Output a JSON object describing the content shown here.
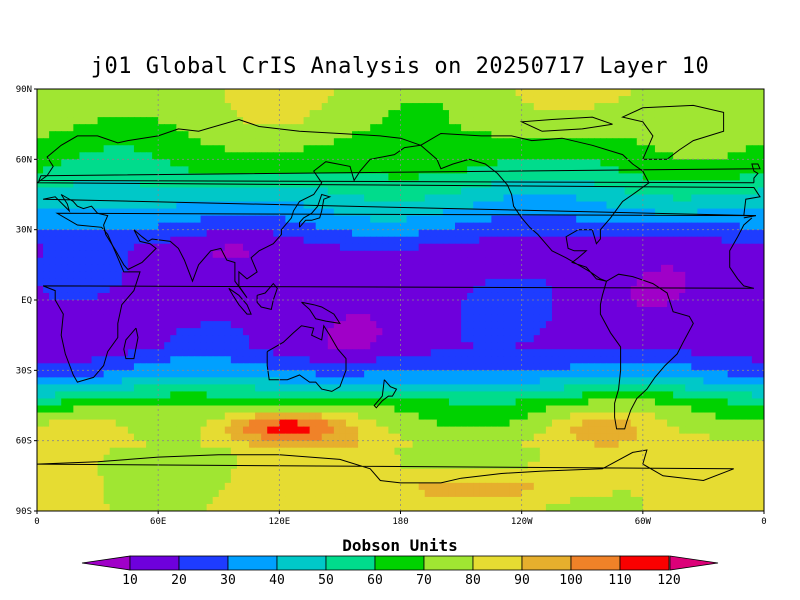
{
  "title": "j01 Global CrIS Analysis on 20250717 Layer 10",
  "colorbar": {
    "title": "Dobson Units",
    "labels": [
      "10",
      "20",
      "30",
      "40",
      "50",
      "60",
      "70",
      "80",
      "90",
      "100",
      "110",
      "120"
    ],
    "colors": [
      "#a000c8",
      "#6e00dc",
      "#1e3cff",
      "#00a0ff",
      "#00c8c8",
      "#00dc8c",
      "#00d200",
      "#a0e632",
      "#e6dc32",
      "#e6af2d",
      "#f08228",
      "#fa0000",
      "#dc0078"
    ]
  },
  "map": {
    "lat_labels": [
      "90N",
      "60N",
      "30N",
      "EQ",
      "30S",
      "60S",
      "90S"
    ],
    "lon_labels": [
      "0",
      "60E",
      "120E",
      "180",
      "120W",
      "60W",
      "0"
    ],
    "projection": "cylindrical",
    "grid": "dashed"
  },
  "chart_data": {
    "type": "heatmap",
    "title": "j01 Global CrIS Analysis on 20250717 Layer 10",
    "units": "Dobson Units",
    "levels": [
      10,
      20,
      30,
      40,
      50,
      60,
      70,
      80,
      90,
      100,
      110,
      120
    ],
    "description_bands": [
      {
        "lat_range": [
          60,
          90
        ],
        "value_range": [
          60,
          80
        ]
      },
      {
        "lat_range": [
          30,
          60
        ],
        "value_range": [
          30,
          60
        ]
      },
      {
        "lat_range": [
          -25,
          25
        ],
        "value_range": [
          10,
          20
        ]
      },
      {
        "lat_range": [
          -50,
          -25
        ],
        "value_range": [
          30,
          70
        ]
      },
      {
        "lat_range": [
          -90,
          -50
        ],
        "value_range": [
          70,
          110
        ]
      }
    ],
    "max_region": {
      "lat": -55,
      "lon": 120,
      "value": 110
    }
  }
}
